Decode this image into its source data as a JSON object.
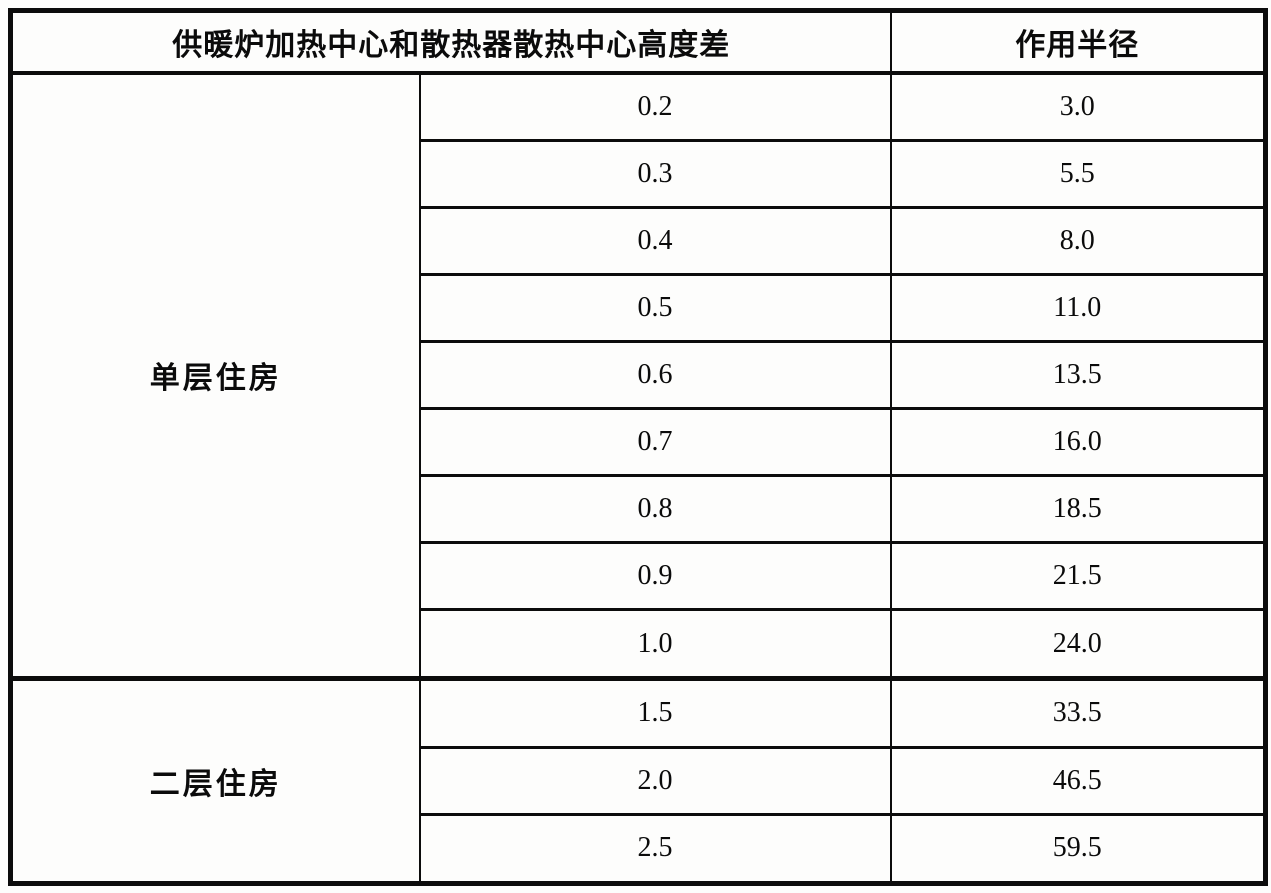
{
  "table": {
    "header": {
      "height_diff_label": "供暖炉加热中心和散热器散热中心高度差",
      "radius_label": "作用半径"
    },
    "sections": [
      {
        "label": "单层住房",
        "rows": [
          {
            "height_diff": "0.2",
            "radius": "3.0"
          },
          {
            "height_diff": "0.3",
            "radius": "5.5"
          },
          {
            "height_diff": "0.4",
            "radius": "8.0"
          },
          {
            "height_diff": "0.5",
            "radius": "11.0"
          },
          {
            "height_diff": "0.6",
            "radius": "13.5"
          },
          {
            "height_diff": "0.7",
            "radius": "16.0"
          },
          {
            "height_diff": "0.8",
            "radius": "18.5"
          },
          {
            "height_diff": "0.9",
            "radius": "21.5"
          },
          {
            "height_diff": "1.0",
            "radius": "24.0"
          }
        ]
      },
      {
        "label": "二层住房",
        "rows": [
          {
            "height_diff": "1.5",
            "radius": "33.5"
          },
          {
            "height_diff": "2.0",
            "radius": "46.5"
          },
          {
            "height_diff": "2.5",
            "radius": "59.5"
          }
        ]
      }
    ],
    "colors": {
      "border": "#0c0c0c",
      "background": "#fdfdfc",
      "text": "#0b0b0b"
    }
  }
}
